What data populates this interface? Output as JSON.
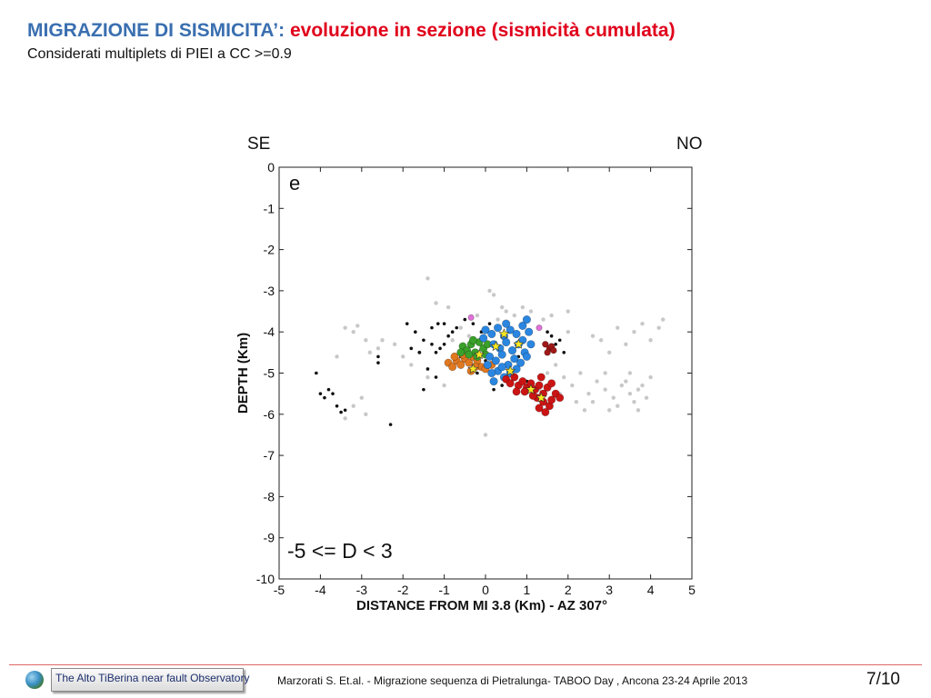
{
  "slide": {
    "title_main": "MIGRAZIONE DI SISMICITA’:",
    "title_highlight": "evoluzione in sezione (sismicità cumulata)",
    "subtitle": "Considerati multiplets di PIEI a CC >=0.9",
    "label_left": "SE",
    "label_right": "NO",
    "footer_text": "Marzorati S.  Et.al. - Migrazione sequenza di Pietralunga- TABOO Day , Ancona 23-24 Aprile 2013",
    "page_number": "7/10",
    "logo_text": "The Alto TiBerina near fault Observatory"
  },
  "colors": {
    "title_blue": "#3a6fb0",
    "title_red": "#e0001b",
    "background_events": "#c8c8c8",
    "black_events": "#111111",
    "green_cluster": "#3aa02a",
    "orange_cluster": "#e07820",
    "blue_cluster": "#2a86e0",
    "red_cluster": "#cc1414",
    "dark_red_cluster": "#a01818",
    "magenta": "#e070d8",
    "star": "#f8e820"
  },
  "chart_data": {
    "type": "scatter",
    "panel_label": "e",
    "annotation": "-5 <= D < 3",
    "xlabel": "DISTANCE FROM MI 3.8 (Km) - AZ 307°",
    "ylabel": "DEPTH (Km)",
    "xlim": [
      -5,
      5
    ],
    "ylim": [
      -10,
      0
    ],
    "xticks": [
      -5,
      -4,
      -3,
      -2,
      -1,
      0,
      1,
      2,
      3,
      4,
      5
    ],
    "yticks": [
      0,
      -1,
      -2,
      -3,
      -4,
      -5,
      -6,
      -7,
      -8,
      -9,
      -10
    ],
    "grid": false,
    "series": [
      {
        "color": "#c8c8c8",
        "size": 2.2,
        "points": [
          [
            -3.4,
            -3.9
          ],
          [
            -3.2,
            -4.0
          ],
          [
            -3.1,
            -3.85
          ],
          [
            -2.9,
            -4.2
          ],
          [
            -2.8,
            -4.5
          ],
          [
            -2.6,
            -4.4
          ],
          [
            -2.5,
            -4.2
          ],
          [
            -3.6,
            -4.6
          ],
          [
            -3.0,
            -5.6
          ],
          [
            -3.2,
            -5.8
          ],
          [
            -2.9,
            -6.0
          ],
          [
            -3.4,
            -6.1
          ],
          [
            -1.4,
            -2.7
          ],
          [
            -1.2,
            -3.3
          ],
          [
            -0.9,
            -3.4
          ],
          [
            0.1,
            -3.0
          ],
          [
            0.2,
            -3.1
          ],
          [
            0.4,
            -3.4
          ],
          [
            -0.2,
            -3.6
          ],
          [
            0.3,
            -3.7
          ],
          [
            0.5,
            -3.5
          ],
          [
            0.7,
            -3.6
          ],
          [
            -1.6,
            -4.5
          ],
          [
            -1.8,
            -4.8
          ],
          [
            -1.4,
            -5.1
          ],
          [
            -0.6,
            -3.9
          ],
          [
            -0.8,
            -4.2
          ],
          [
            1.4,
            -3.7
          ],
          [
            1.6,
            -3.6
          ],
          [
            2.0,
            -4.0
          ],
          [
            1.7,
            -4.8
          ],
          [
            1.9,
            -5.1
          ],
          [
            2.1,
            -5.3
          ],
          [
            2.3,
            -5.0
          ],
          [
            2.5,
            -5.5
          ],
          [
            2.7,
            -5.2
          ],
          [
            2.9,
            -5.4
          ],
          [
            3.1,
            -5.6
          ],
          [
            3.3,
            -5.3
          ],
          [
            3.5,
            -5.5
          ],
          [
            3.7,
            -5.4
          ],
          [
            3.9,
            -5.6
          ],
          [
            3.2,
            -5.8
          ],
          [
            3.4,
            -5.2
          ],
          [
            3.6,
            -5.7
          ],
          [
            3.8,
            -5.3
          ],
          [
            2.2,
            -5.7
          ],
          [
            2.4,
            -5.9
          ],
          [
            1.8,
            -5.5
          ],
          [
            2.6,
            -4.1
          ],
          [
            2.8,
            -4.2
          ],
          [
            3.0,
            -4.5
          ],
          [
            3.2,
            -3.9
          ],
          [
            3.4,
            -4.3
          ],
          [
            3.6,
            -4.0
          ],
          [
            3.8,
            -3.8
          ],
          [
            4.0,
            -4.2
          ],
          [
            4.2,
            -3.9
          ],
          [
            4.3,
            -3.7
          ],
          [
            2.0,
            -3.5
          ],
          [
            1.5,
            -5.0
          ],
          [
            0.0,
            -6.5
          ],
          [
            -1.0,
            -5.3
          ],
          [
            1.3,
            -5.4
          ],
          [
            2.9,
            -5.0
          ],
          [
            3.5,
            -5.0
          ],
          [
            -2.2,
            -4.3
          ],
          [
            -2.0,
            -4.6
          ],
          [
            0.9,
            -3.4
          ],
          [
            1.1,
            -3.5
          ],
          [
            -0.4,
            -4.1
          ],
          [
            2.6,
            -5.7
          ],
          [
            3.0,
            -5.9
          ],
          [
            3.7,
            -5.9
          ],
          [
            4.0,
            -5.1
          ],
          [
            1.6,
            -5.8
          ]
        ]
      },
      {
        "color": "#111111",
        "size": 1.8,
        "points": [
          [
            -4.1,
            -5.0
          ],
          [
            -4.0,
            -5.5
          ],
          [
            -3.9,
            -5.6
          ],
          [
            -3.8,
            -5.4
          ],
          [
            -3.7,
            -5.5
          ],
          [
            -3.6,
            -5.8
          ],
          [
            -3.5,
            -5.95
          ],
          [
            -3.4,
            -5.9
          ],
          [
            -2.6,
            -4.6
          ],
          [
            -2.6,
            -4.75
          ],
          [
            -2.3,
            -6.25
          ],
          [
            -1.9,
            -3.8
          ],
          [
            -1.7,
            -4.0
          ],
          [
            -1.5,
            -4.2
          ],
          [
            -1.3,
            -4.3
          ],
          [
            -1.2,
            -4.5
          ],
          [
            -1.1,
            -4.4
          ],
          [
            -1.0,
            -4.3
          ],
          [
            -0.9,
            -4.1
          ],
          [
            -1.6,
            -4.5
          ],
          [
            -1.4,
            -4.9
          ],
          [
            -1.5,
            -5.4
          ],
          [
            -1.3,
            -3.9
          ],
          [
            -1.15,
            -3.8
          ],
          [
            -1.0,
            -3.8
          ],
          [
            -0.8,
            -4.0
          ],
          [
            -0.7,
            -3.9
          ],
          [
            -0.5,
            -3.7
          ],
          [
            -0.3,
            -3.8
          ],
          [
            -0.1,
            -4.0
          ],
          [
            0.1,
            -3.8
          ],
          [
            0.3,
            -3.9
          ],
          [
            1.5,
            -4.0
          ],
          [
            1.6,
            -4.1
          ],
          [
            1.7,
            -4.3
          ],
          [
            1.8,
            -4.2
          ],
          [
            0.2,
            -5.4
          ],
          [
            0.4,
            -5.3
          ],
          [
            0.6,
            -5.2
          ],
          [
            1.0,
            -5.2
          ],
          [
            -0.2,
            -5.0
          ],
          [
            -0.4,
            -4.8
          ],
          [
            0.8,
            -4.6
          ],
          [
            1.2,
            -5.6
          ],
          [
            1.4,
            -5.7
          ],
          [
            -0.6,
            -4.6
          ],
          [
            -1.8,
            -4.4
          ],
          [
            -1.2,
            -5.1
          ],
          [
            0.0,
            -4.7
          ],
          [
            1.9,
            -4.5
          ]
        ]
      },
      {
        "color": "#e07820",
        "size": 4.2,
        "points": [
          [
            -0.9,
            -4.75
          ],
          [
            -0.8,
            -4.85
          ],
          [
            -0.7,
            -4.7
          ],
          [
            -0.6,
            -4.8
          ],
          [
            -0.5,
            -4.65
          ],
          [
            -0.4,
            -4.75
          ],
          [
            -0.3,
            -4.6
          ],
          [
            -0.2,
            -4.7
          ],
          [
            -0.1,
            -4.85
          ],
          [
            0.0,
            -4.9
          ],
          [
            -0.35,
            -4.95
          ],
          [
            -0.55,
            -4.55
          ],
          [
            0.15,
            -4.8
          ],
          [
            -0.75,
            -4.6
          ],
          [
            -0.25,
            -4.85
          ]
        ]
      },
      {
        "color": "#3aa02a",
        "size": 4.2,
        "points": [
          [
            -0.55,
            -4.35
          ],
          [
            -0.45,
            -4.45
          ],
          [
            -0.35,
            -4.3
          ],
          [
            -0.25,
            -4.5
          ],
          [
            -0.15,
            -4.25
          ],
          [
            -0.05,
            -4.4
          ],
          [
            0.05,
            -4.3
          ],
          [
            -0.4,
            -4.55
          ],
          [
            -0.2,
            -4.6
          ],
          [
            0.0,
            -4.55
          ],
          [
            -0.6,
            -4.5
          ],
          [
            -0.3,
            -4.2
          ]
        ]
      },
      {
        "color": "#2a86e0",
        "size": 4.3,
        "points": [
          [
            0.0,
            -3.95
          ],
          [
            0.15,
            -4.05
          ],
          [
            0.3,
            -3.9
          ],
          [
            0.45,
            -4.1
          ],
          [
            0.6,
            -3.95
          ],
          [
            0.75,
            -4.05
          ],
          [
            0.9,
            -3.85
          ],
          [
            1.05,
            -4.0
          ],
          [
            0.2,
            -4.3
          ],
          [
            0.35,
            -4.4
          ],
          [
            0.5,
            -4.25
          ],
          [
            0.65,
            -4.45
          ],
          [
            0.8,
            -4.3
          ],
          [
            0.95,
            -4.5
          ],
          [
            0.1,
            -4.6
          ],
          [
            0.25,
            -4.7
          ],
          [
            0.4,
            -4.55
          ],
          [
            0.55,
            -4.8
          ],
          [
            0.7,
            -4.65
          ],
          [
            0.85,
            -4.75
          ],
          [
            1.0,
            -4.6
          ],
          [
            0.3,
            -4.95
          ],
          [
            0.45,
            -5.1
          ],
          [
            0.15,
            -5.0
          ],
          [
            0.6,
            -5.0
          ],
          [
            0.05,
            -4.8
          ],
          [
            0.2,
            -5.2
          ],
          [
            0.9,
            -4.2
          ],
          [
            0.5,
            -3.8
          ],
          [
            1.1,
            -4.3
          ],
          [
            0.75,
            -4.9
          ],
          [
            -0.05,
            -4.15
          ],
          [
            1.0,
            -3.7
          ],
          [
            0.4,
            -4.85
          ]
        ]
      },
      {
        "color": "#cc1414",
        "size": 4.2,
        "points": [
          [
            0.5,
            -5.15
          ],
          [
            0.6,
            -5.25
          ],
          [
            0.7,
            -5.1
          ],
          [
            0.8,
            -5.3
          ],
          [
            0.9,
            -5.2
          ],
          [
            1.0,
            -5.35
          ],
          [
            1.1,
            -5.25
          ],
          [
            1.2,
            -5.4
          ],
          [
            1.3,
            -5.3
          ],
          [
            1.4,
            -5.5
          ],
          [
            1.5,
            -5.35
          ],
          [
            1.25,
            -5.6
          ],
          [
            1.4,
            -5.7
          ],
          [
            1.55,
            -5.8
          ],
          [
            1.3,
            -5.85
          ],
          [
            1.45,
            -5.95
          ],
          [
            1.6,
            -5.65
          ],
          [
            1.7,
            -5.5
          ],
          [
            1.8,
            -5.6
          ],
          [
            0.95,
            -5.45
          ],
          [
            1.15,
            -5.55
          ],
          [
            1.35,
            -5.1
          ],
          [
            0.75,
            -5.45
          ],
          [
            1.6,
            -5.25
          ]
        ]
      },
      {
        "color": "#a01818",
        "size": 3.4,
        "points": [
          [
            1.45,
            -4.3
          ],
          [
            1.55,
            -4.4
          ],
          [
            1.5,
            -4.5
          ],
          [
            1.6,
            -4.35
          ],
          [
            1.65,
            -4.45
          ]
        ]
      },
      {
        "color": "#e070d8",
        "size": 3.2,
        "points": [
          [
            -0.35,
            -3.65
          ],
          [
            1.3,
            -3.9
          ]
        ]
      }
    ],
    "stars": [
      [
        -0.15,
        -4.55
      ],
      [
        0.25,
        -4.35
      ],
      [
        0.8,
        -4.3
      ],
      [
        0.6,
        -4.95
      ],
      [
        -0.3,
        -4.9
      ],
      [
        1.1,
        -5.4
      ],
      [
        1.35,
        -5.6
      ],
      [
        0.45,
        -4.05
      ]
    ]
  }
}
